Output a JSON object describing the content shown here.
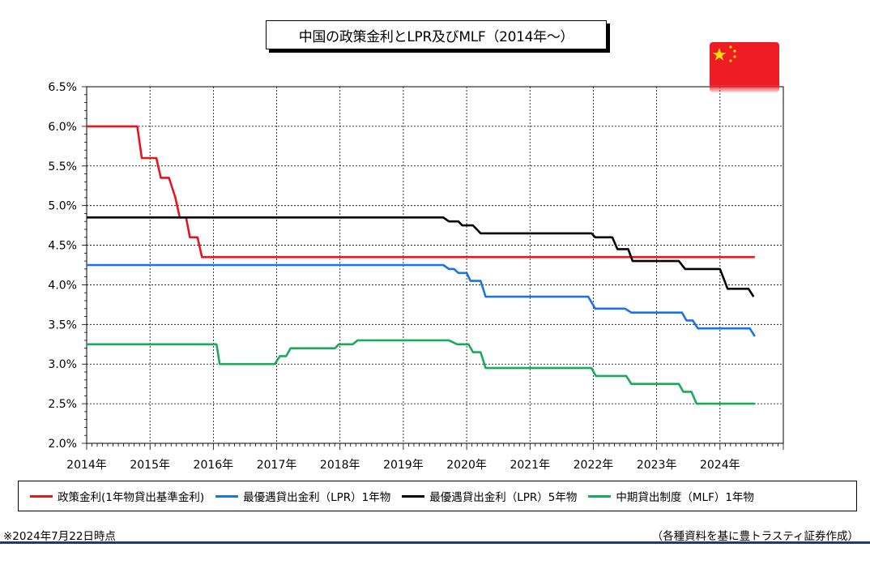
{
  "title": "中国の政策金利とLPR及びMLF（2014年～）",
  "note_left": "※2024年7月22日時点",
  "note_right": "（各種資料を基に豊トラスティ証券作成）",
  "flag": "china-flag",
  "chart_data": {
    "type": "line",
    "x_labels": [
      "2014年",
      "2015年",
      "2016年",
      "2017年",
      "2018年",
      "2019年",
      "2020年",
      "2021年",
      "2022年",
      "2023年",
      "2024年"
    ],
    "xlim": [
      2014.0,
      2025.0
    ],
    "ylim": [
      2.0,
      6.5
    ],
    "y_ticks": [
      "2.0%",
      "2.5%",
      "3.0%",
      "3.5%",
      "4.0%",
      "4.5%",
      "5.0%",
      "5.5%",
      "6.0%",
      "6.5%"
    ],
    "grid": true,
    "legend_position": "bottom",
    "series": [
      {
        "name": "政策金利(1年物貸出基準金利)",
        "color": "#e8141c",
        "points": [
          [
            2014.0,
            6.0
          ],
          [
            2014.8,
            6.0
          ],
          [
            2014.87,
            5.6
          ],
          [
            2015.1,
            5.6
          ],
          [
            2015.17,
            5.35
          ],
          [
            2015.3,
            5.35
          ],
          [
            2015.4,
            5.1
          ],
          [
            2015.47,
            4.85
          ],
          [
            2015.57,
            4.85
          ],
          [
            2015.63,
            4.6
          ],
          [
            2015.75,
            4.6
          ],
          [
            2015.82,
            4.35
          ],
          [
            2024.55,
            4.35
          ]
        ]
      },
      {
        "name": "最優遇貸出金利（LPR）1年物",
        "color": "#1a73e8",
        "points": [
          [
            2014.0,
            4.25
          ],
          [
            2019.63,
            4.25
          ],
          [
            2019.72,
            4.2
          ],
          [
            2019.8,
            4.2
          ],
          [
            2019.87,
            4.15
          ],
          [
            2020.0,
            4.15
          ],
          [
            2020.06,
            4.05
          ],
          [
            2020.22,
            4.05
          ],
          [
            2020.3,
            3.85
          ],
          [
            2021.92,
            3.85
          ],
          [
            2022.03,
            3.7
          ],
          [
            2022.5,
            3.7
          ],
          [
            2022.6,
            3.65
          ],
          [
            2023.4,
            3.65
          ],
          [
            2023.47,
            3.55
          ],
          [
            2023.57,
            3.55
          ],
          [
            2023.65,
            3.45
          ],
          [
            2024.47,
            3.45
          ],
          [
            2024.55,
            3.35
          ]
        ]
      },
      {
        "name": "最優遇貸出金利（LPR）5年物",
        "color": "#000000",
        "points": [
          [
            2014.0,
            4.85
          ],
          [
            2019.63,
            4.85
          ],
          [
            2019.72,
            4.8
          ],
          [
            2019.87,
            4.8
          ],
          [
            2019.93,
            4.75
          ],
          [
            2020.1,
            4.75
          ],
          [
            2020.22,
            4.65
          ],
          [
            2021.97,
            4.65
          ],
          [
            2022.03,
            4.6
          ],
          [
            2022.3,
            4.6
          ],
          [
            2022.38,
            4.45
          ],
          [
            2022.55,
            4.45
          ],
          [
            2022.62,
            4.3
          ],
          [
            2023.35,
            4.3
          ],
          [
            2023.45,
            4.2
          ],
          [
            2024.0,
            4.2
          ],
          [
            2024.12,
            3.95
          ],
          [
            2024.45,
            3.95
          ],
          [
            2024.53,
            3.85
          ]
        ]
      },
      {
        "name": "中期貸出制度（MLF）1年物",
        "color": "#1aaa5a",
        "points": [
          [
            2014.0,
            3.25
          ],
          [
            2016.05,
            3.25
          ],
          [
            2016.1,
            3.0
          ],
          [
            2016.97,
            3.0
          ],
          [
            2017.05,
            3.1
          ],
          [
            2017.15,
            3.1
          ],
          [
            2017.22,
            3.2
          ],
          [
            2017.92,
            3.2
          ],
          [
            2017.98,
            3.25
          ],
          [
            2018.2,
            3.25
          ],
          [
            2018.28,
            3.3
          ],
          [
            2019.72,
            3.3
          ],
          [
            2019.85,
            3.25
          ],
          [
            2020.03,
            3.25
          ],
          [
            2020.1,
            3.15
          ],
          [
            2020.22,
            3.15
          ],
          [
            2020.3,
            2.95
          ],
          [
            2021.97,
            2.95
          ],
          [
            2022.04,
            2.85
          ],
          [
            2022.52,
            2.85
          ],
          [
            2022.6,
            2.75
          ],
          [
            2023.35,
            2.75
          ],
          [
            2023.42,
            2.65
          ],
          [
            2023.55,
            2.65
          ],
          [
            2023.63,
            2.5
          ],
          [
            2024.55,
            2.5
          ]
        ]
      }
    ]
  }
}
